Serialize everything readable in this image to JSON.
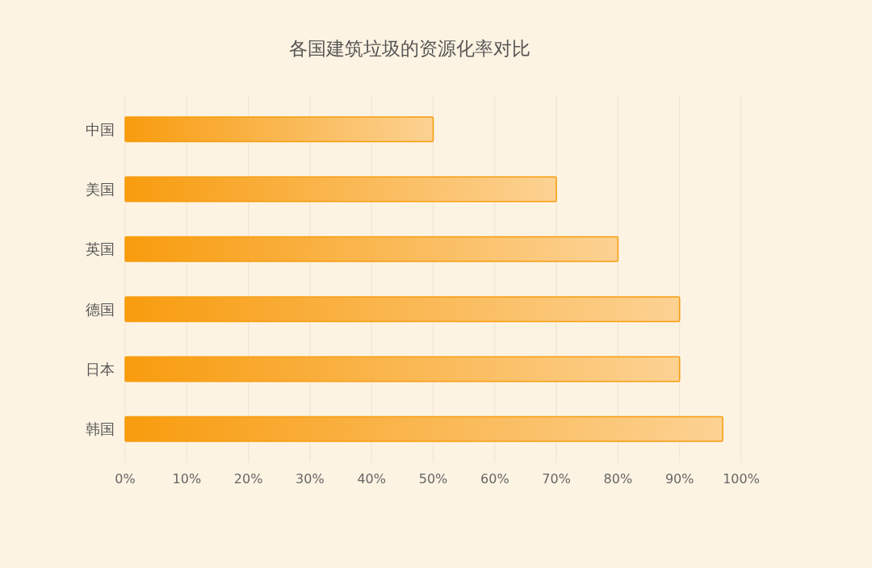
{
  "chart_data": {
    "type": "bar",
    "title": "各国建筑垃圾的资源化率对比",
    "orientation": "horizontal",
    "categories": [
      "中国",
      "美国",
      "英国",
      "德国",
      "日本",
      "韩国"
    ],
    "values": [
      50,
      70,
      80,
      90,
      90,
      97
    ],
    "color": "#f89c0e",
    "xlim": [
      0,
      100
    ],
    "xticks": [
      {
        "value": 0,
        "label": "0%"
      },
      {
        "value": 10,
        "label": "10%"
      },
      {
        "value": 20,
        "label": "20%"
      },
      {
        "value": 30,
        "label": "30%"
      },
      {
        "value": 40,
        "label": "40%"
      },
      {
        "value": 50,
        "label": "50%"
      },
      {
        "value": 60,
        "label": "60%"
      },
      {
        "value": 70,
        "label": "70%"
      },
      {
        "value": 80,
        "label": "80%"
      },
      {
        "value": 90,
        "label": "90%"
      },
      {
        "value": 100,
        "label": "100%"
      }
    ],
    "grid": "x"
  }
}
